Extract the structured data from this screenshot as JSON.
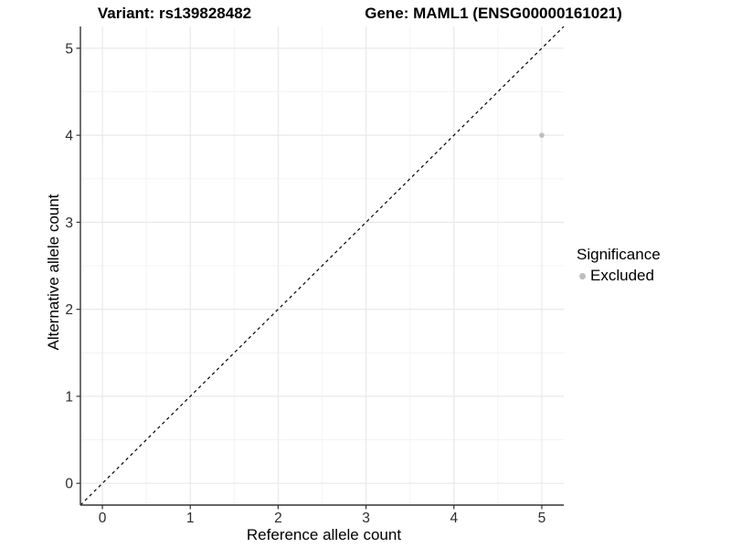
{
  "chart_data": {
    "type": "scatter",
    "title_left": "Variant: rs139828482",
    "title_right": "Gene: MAML1 (ENSG00000161021)",
    "xlabel": "Reference allele count",
    "ylabel": "Alternative allele count",
    "xlim": [
      -0.25,
      5.25
    ],
    "ylim": [
      -0.25,
      5.25
    ],
    "x_ticks": [
      0,
      1,
      2,
      3,
      4,
      5
    ],
    "y_ticks": [
      0,
      1,
      2,
      3,
      4,
      5
    ],
    "x_minor_ticks": [
      0.5,
      1.5,
      2.5,
      3.5,
      4.5
    ],
    "y_minor_ticks": [
      0.5,
      1.5,
      2.5,
      3.5,
      4.5
    ],
    "grid": "major and minor, light gray on white",
    "identity_line": {
      "type": "dashed",
      "equation": "y = x",
      "from": -0.25,
      "to": 5.25
    },
    "points": [
      {
        "x": 5,
        "y": 4,
        "series": "Excluded"
      }
    ],
    "legend": {
      "position": "right",
      "title": "Significance",
      "entries": [
        {
          "label": "Excluded",
          "color": "#bebebe"
        }
      ]
    },
    "colors": {
      "point": "#bebebe",
      "legend_dot": "#b5b5b5",
      "grid_major": "#e9e9e9",
      "grid_minor": "#f4f4f4",
      "axis_line": "#333333",
      "tick_mark": "#333333",
      "tick_label": "#2b2b2b",
      "axis_title": "#000000",
      "identity_line": "#000000",
      "background": "#ffffff"
    }
  }
}
